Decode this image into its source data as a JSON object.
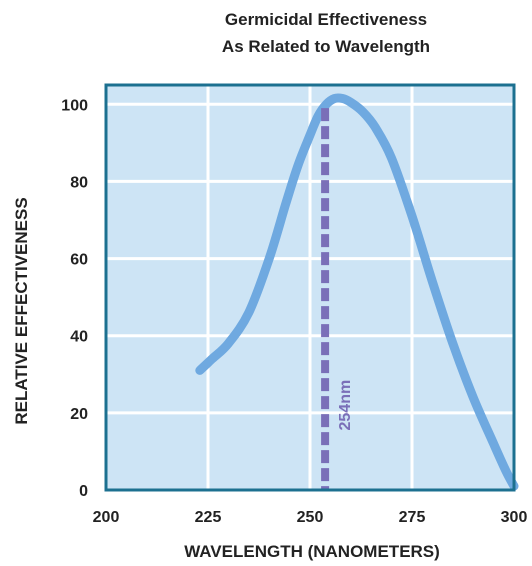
{
  "chart_data": {
    "type": "line",
    "title_lines": [
      "Germicidal Effectiveness",
      "As Related to Wavelength"
    ],
    "xlabel": "WAVELENGTH (NANOMETERS)",
    "ylabel": "RELATIVE EFFECTIVENESS",
    "xlim": [
      200,
      300
    ],
    "ylim": [
      0,
      105
    ],
    "x_ticks": [
      200,
      225,
      250,
      275,
      300
    ],
    "y_ticks": [
      0,
      20,
      40,
      60,
      80,
      100
    ],
    "grid": true,
    "series": [
      {
        "x": [
          223,
          226,
          230,
          235,
          240,
          244,
          247,
          250,
          252,
          254,
          256,
          258,
          260,
          263,
          266,
          270,
          275,
          280,
          285,
          290,
          295,
          298,
          300
        ],
        "y": [
          31,
          34,
          38,
          46,
          60,
          74,
          84,
          92,
          97,
          100,
          101.5,
          101.5,
          100.5,
          98,
          94,
          86,
          71,
          54,
          38,
          24,
          12,
          5,
          1
        ]
      }
    ],
    "annotations": [
      {
        "type": "vline",
        "x": 253.7,
        "label": "254nm"
      }
    ],
    "colors": {
      "plot_background": "#cde4f5",
      "grid": "#ffffff",
      "frame": "#1c7090",
      "curve": "#6fa9e0",
      "marker_line": "#7a6fb8"
    }
  }
}
